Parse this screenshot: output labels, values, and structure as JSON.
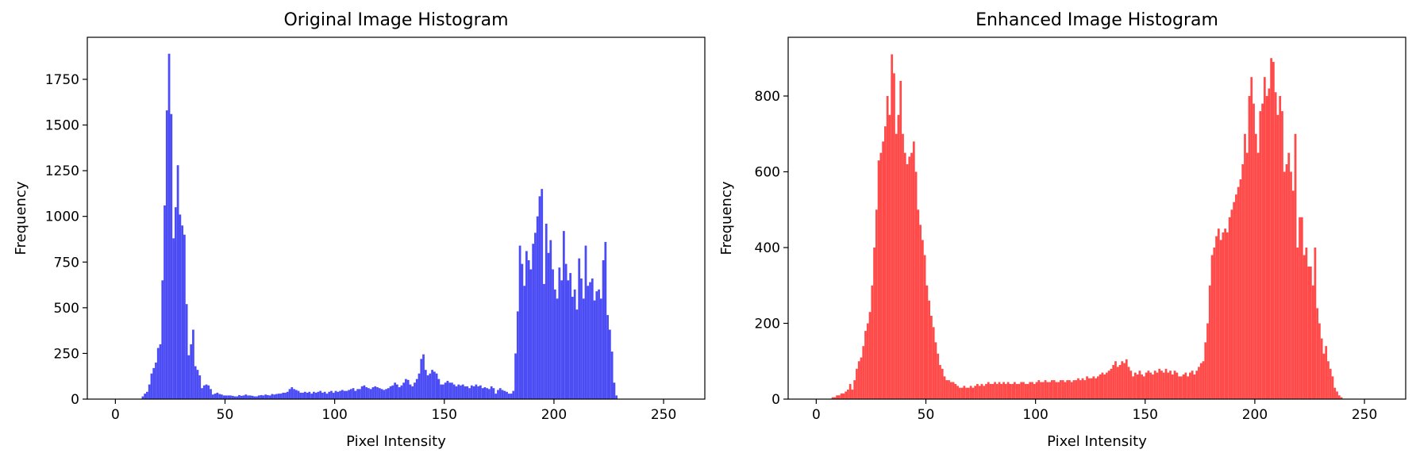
{
  "chart_data": [
    {
      "type": "bar",
      "title": "Original Image Histogram",
      "xlabel": "Pixel Intensity",
      "ylabel": "Frequency",
      "xlim": [
        -12.8,
        268.8
      ],
      "ylim": [
        0,
        1980
      ],
      "xticks": [
        0,
        50,
        100,
        150,
        200,
        250
      ],
      "yticks": [
        0,
        250,
        500,
        750,
        1000,
        1250,
        1500,
        1750
      ],
      "grid": false,
      "color": "#4c4cf5",
      "bin_width": 1,
      "x_start": 0,
      "values": [
        0,
        0,
        0,
        0,
        0,
        0,
        0,
        0,
        0,
        0,
        0,
        0,
        15,
        30,
        40,
        80,
        140,
        170,
        200,
        280,
        300,
        650,
        1060,
        1580,
        1890,
        1560,
        880,
        1050,
        1280,
        1010,
        950,
        900,
        520,
        240,
        300,
        380,
        180,
        160,
        130,
        60,
        75,
        80,
        75,
        55,
        25,
        30,
        35,
        28,
        25,
        20,
        20,
        20,
        20,
        18,
        15,
        15,
        22,
        18,
        20,
        25,
        20,
        20,
        18,
        15,
        15,
        20,
        22,
        20,
        25,
        22,
        20,
        28,
        25,
        28,
        30,
        30,
        35,
        35,
        40,
        55,
        65,
        55,
        50,
        45,
        35,
        35,
        40,
        35,
        40,
        30,
        40,
        35,
        40,
        45,
        35,
        40,
        30,
        40,
        45,
        35,
        45,
        40,
        45,
        50,
        45,
        45,
        50,
        55,
        60,
        45,
        55,
        55,
        70,
        75,
        65,
        60,
        55,
        65,
        70,
        65,
        60,
        55,
        50,
        55,
        60,
        70,
        75,
        90,
        80,
        65,
        75,
        90,
        110,
        105,
        80,
        70,
        90,
        110,
        140,
        220,
        245,
        160,
        130,
        140,
        160,
        150,
        140,
        110,
        80,
        80,
        90,
        100,
        90,
        90,
        80,
        70,
        80,
        75,
        80,
        70,
        70,
        60,
        75,
        70,
        80,
        70,
        75,
        60,
        65,
        60,
        55,
        70,
        60,
        30,
        50,
        60,
        50,
        45,
        40,
        30,
        30,
        45,
        250,
        480,
        840,
        740,
        620,
        810,
        760,
        710,
        850,
        910,
        1000,
        1110,
        1150,
        630,
        960,
        800,
        870,
        710,
        600,
        550,
        720,
        650,
        920,
        740,
        650,
        690,
        560,
        600,
        490,
        770,
        660,
        550,
        840,
        620,
        640,
        660,
        540,
        590,
        600,
        550,
        760,
        860,
        460,
        380,
        260,
        90,
        20,
        0,
        0,
        0,
        0,
        0,
        0,
        0,
        0,
        0,
        0,
        0,
        0,
        0,
        0,
        0,
        0
      ]
    },
    {
      "type": "bar",
      "title": "Enhanced Image Histogram",
      "xlabel": "Pixel Intensity",
      "ylabel": "Frequency",
      "xlim": [
        -12.8,
        268.8
      ],
      "ylim": [
        0,
        955
      ],
      "xticks": [
        0,
        50,
        100,
        150,
        200,
        250
      ],
      "yticks": [
        0,
        200,
        400,
        600,
        800
      ],
      "grid": false,
      "color": "#ff4a4a",
      "bin_width": 1,
      "x_start": 0,
      "values": [
        0,
        0,
        0,
        0,
        0,
        0,
        0,
        5,
        5,
        10,
        10,
        15,
        15,
        20,
        25,
        40,
        25,
        50,
        80,
        100,
        110,
        140,
        180,
        200,
        230,
        300,
        400,
        500,
        630,
        650,
        680,
        720,
        800,
        750,
        910,
        860,
        700,
        750,
        840,
        700,
        650,
        620,
        640,
        650,
        680,
        600,
        500,
        460,
        420,
        380,
        300,
        260,
        220,
        190,
        150,
        120,
        90,
        80,
        60,
        50,
        50,
        45,
        45,
        40,
        35,
        30,
        30,
        35,
        30,
        30,
        35,
        30,
        35,
        40,
        35,
        40,
        35,
        40,
        45,
        40,
        40,
        45,
        40,
        45,
        40,
        45,
        40,
        45,
        40,
        40,
        45,
        40,
        40,
        45,
        45,
        40,
        40,
        45,
        45,
        40,
        45,
        50,
        45,
        45,
        50,
        45,
        45,
        50,
        50,
        45,
        45,
        50,
        50,
        45,
        50,
        50,
        45,
        50,
        50,
        55,
        50,
        55,
        50,
        60,
        55,
        55,
        60,
        55,
        60,
        65,
        70,
        65,
        70,
        75,
        80,
        90,
        100,
        85,
        90,
        100,
        95,
        105,
        85,
        75,
        60,
        70,
        65,
        75,
        65,
        60,
        70,
        75,
        70,
        65,
        75,
        70,
        80,
        75,
        70,
        80,
        70,
        75,
        65,
        75,
        70,
        60,
        60,
        65,
        70,
        60,
        70,
        75,
        65,
        75,
        85,
        95,
        100,
        150,
        200,
        300,
        380,
        400,
        430,
        450,
        420,
        440,
        450,
        440,
        480,
        500,
        520,
        540,
        560,
        580,
        620,
        700,
        650,
        800,
        850,
        780,
        700,
        650,
        760,
        780,
        850,
        800,
        820,
        900,
        890,
        810,
        750,
        800,
        760,
        600,
        620,
        650,
        600,
        550,
        700,
        400,
        480,
        480,
        380,
        400,
        350,
        350,
        300,
        400,
        240,
        200,
        160,
        120,
        140,
        100,
        80,
        60,
        30,
        20,
        10,
        5,
        0,
        0,
        0,
        0,
        0,
        0
      ]
    }
  ]
}
